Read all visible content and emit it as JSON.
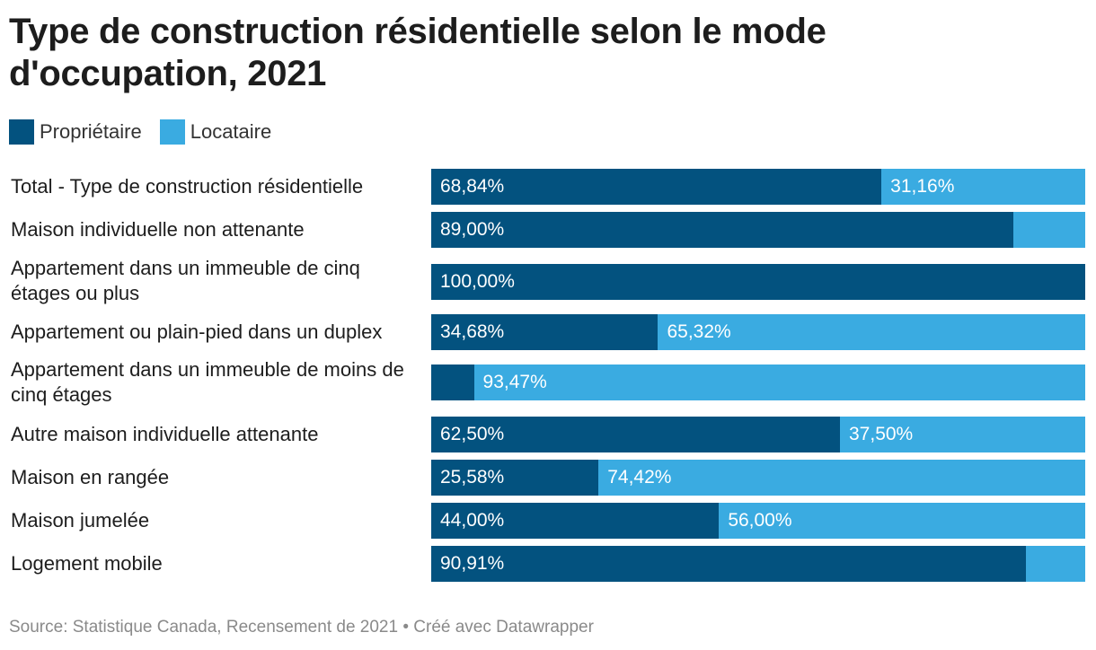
{
  "title": "Type de construction résidentielle selon le mode d'occupation, 2021",
  "source": "Source: Statistique Canada, Recensement de 2021 • Créé avec Datawrapper",
  "colors": {
    "owner": "#03527f",
    "renter": "#3aabe1"
  },
  "chart_data": {
    "type": "bar",
    "orientation": "horizontal",
    "stacked": true,
    "categories": [
      "Total - Type de construction résidentielle",
      "Maison individuelle non attenante",
      "Appartement dans un immeuble de cinq étages ou plus",
      "Appartement ou plain-pied dans un duplex",
      "Appartement dans un immeuble de moins de cinq étages",
      "Autre maison individuelle attenante",
      "Maison en rangée",
      "Maison jumelée",
      "Logement mobile"
    ],
    "series": [
      {
        "name": "Propriétaire",
        "values": [
          68.84,
          89.0,
          100.0,
          34.68,
          6.53,
          62.5,
          25.58,
          44.0,
          90.91
        ],
        "labels": [
          "68,84%",
          "89,00%",
          "100,00%",
          "34,68%",
          "",
          "62,50%",
          "25,58%",
          "44,00%",
          "90,91%"
        ]
      },
      {
        "name": "Locataire",
        "values": [
          31.16,
          11.0,
          0.0,
          65.32,
          93.47,
          37.5,
          74.42,
          56.0,
          9.09
        ],
        "labels": [
          "31,16%",
          "",
          "",
          "65,32%",
          "93,47%",
          "37,50%",
          "74,42%",
          "56,00%",
          ""
        ]
      }
    ],
    "xlim": [
      0,
      100
    ],
    "legend": "top-left",
    "grid": false
  }
}
